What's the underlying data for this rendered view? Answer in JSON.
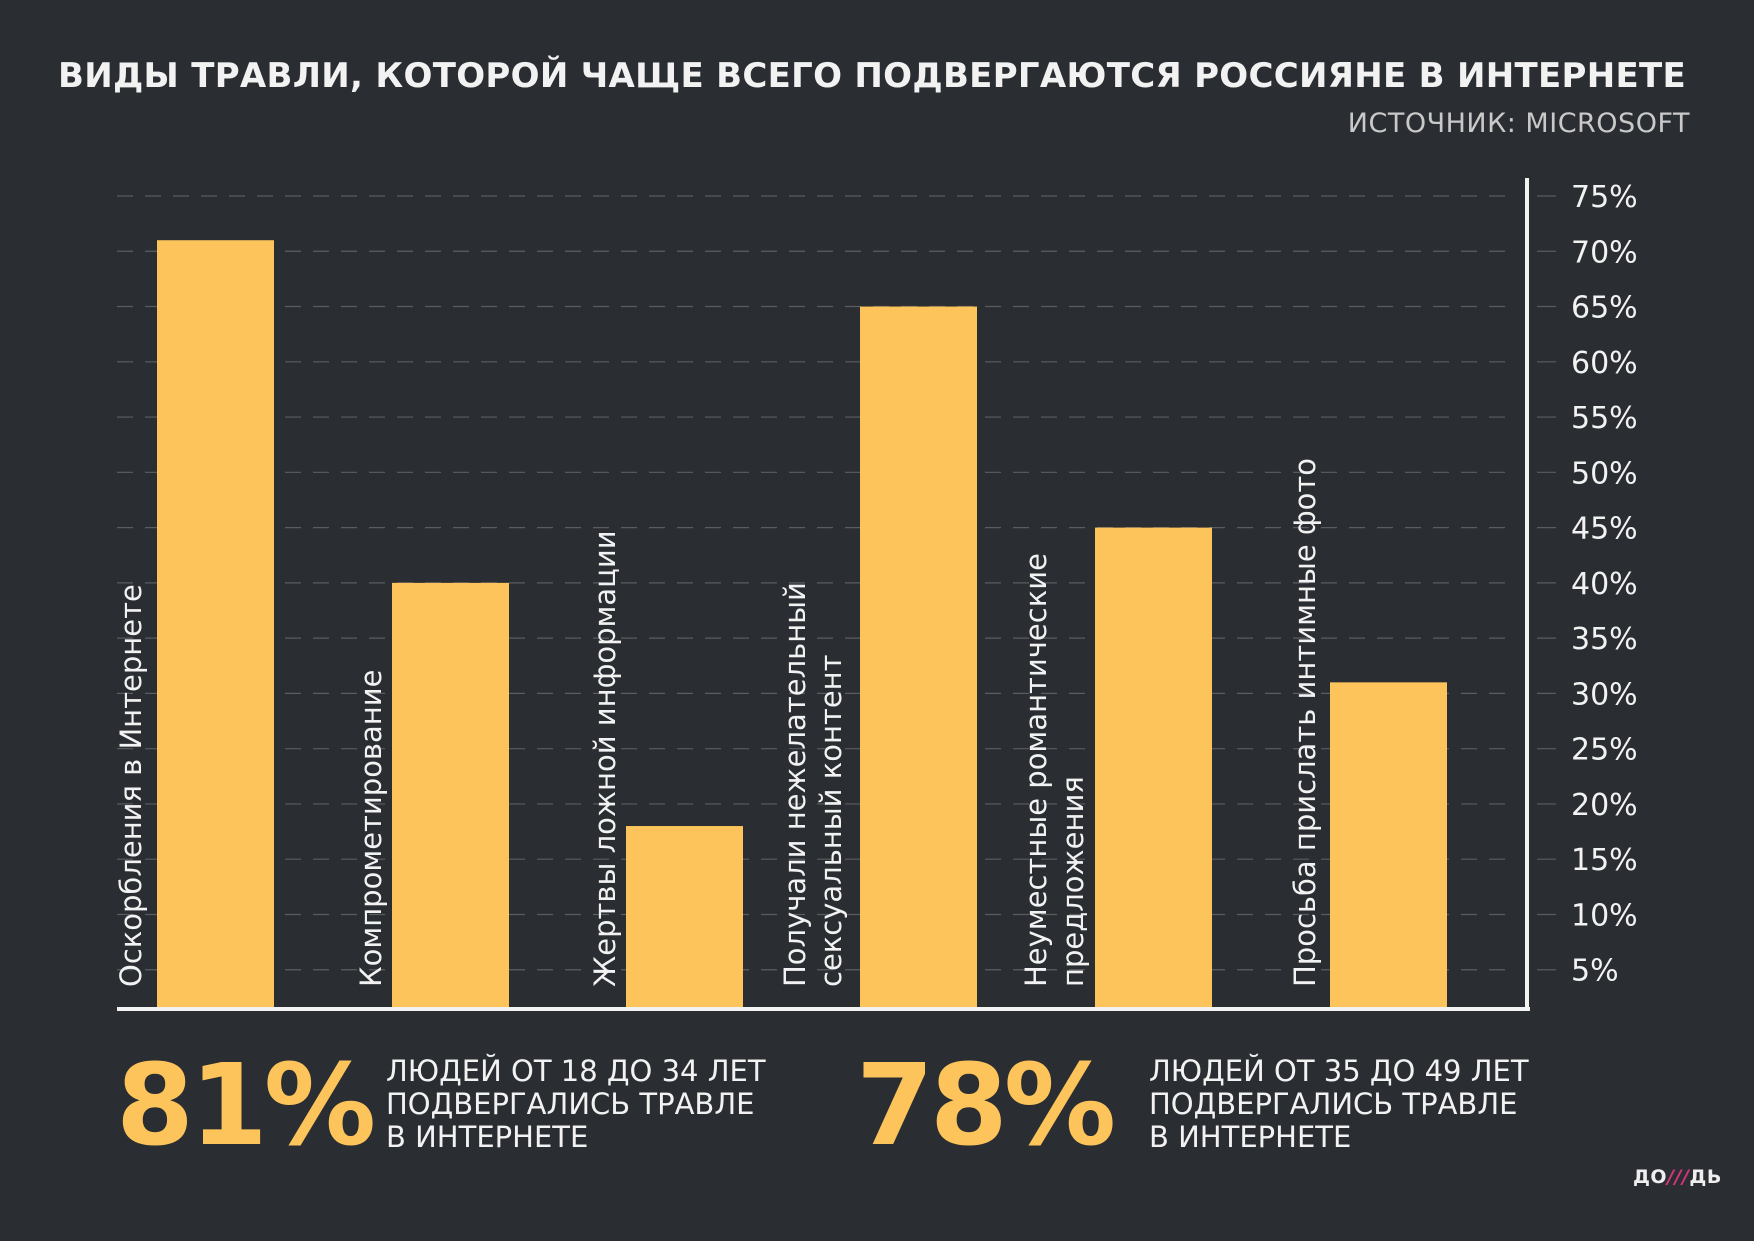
{
  "title": "ВИДЫ ТРАВЛИ, КОТОРОЙ ЧАЩЕ ВСЕГО ПОДВЕРГАЮТСЯ РОССИЯНЕ В ИНТЕРНЕТЕ",
  "subtitle": "ИСТОЧНИК: MICROSOFT",
  "chart_data": {
    "type": "bar",
    "title": "ВИДЫ ТРАВЛИ, КОТОРОЙ ЧАЩЕ ВСЕГО ПОДВЕРГАЮТСЯ РОССИЯНЕ В ИНТЕРНЕТЕ",
    "categories": [
      [
        "Оскорбления в Интернете"
      ],
      [
        "Компрометирование"
      ],
      [
        "Жертвы ложной информации"
      ],
      [
        "Получали нежелательный",
        "сексуальный контент"
      ],
      [
        "Неуместные романтические",
        "предложения"
      ],
      [
        "Просьба прислать интимные фото"
      ]
    ],
    "values": [
      71,
      40,
      18,
      65,
      45,
      31
    ],
    "unit": "%",
    "ylim": [
      0,
      75
    ],
    "yticks": [
      "5%",
      "10%",
      "15%",
      "20%",
      "25%",
      "30%",
      "35%",
      "40%",
      "45%",
      "50%",
      "55%",
      "60%",
      "65%",
      "70%",
      "75%"
    ],
    "ytick_values": [
      5,
      10,
      15,
      20,
      25,
      30,
      35,
      40,
      45,
      50,
      55,
      60,
      65,
      70,
      75
    ],
    "y_axis_position": "right",
    "grid": true,
    "bar_color": "#fcc45a",
    "background": "#2a2d31"
  },
  "stats": [
    {
      "value": "81%",
      "text": "ЛЮДЕЙ ОТ 18 ДО 34 ЛЕТ\nПОДВЕРГАЛИСЬ ТРАВЛЕ\nВ ИНТЕРНЕТЕ"
    },
    {
      "value": "78%",
      "text": "ЛЮДЕЙ ОТ 35 ДО 49 ЛЕТ\nПОДВЕРГАЛИСЬ ТРАВЛЕ\nВ ИНТЕРНЕТЕ"
    }
  ],
  "logo": {
    "left": "ДО",
    "mark": "///",
    "right": "ДЬ"
  }
}
